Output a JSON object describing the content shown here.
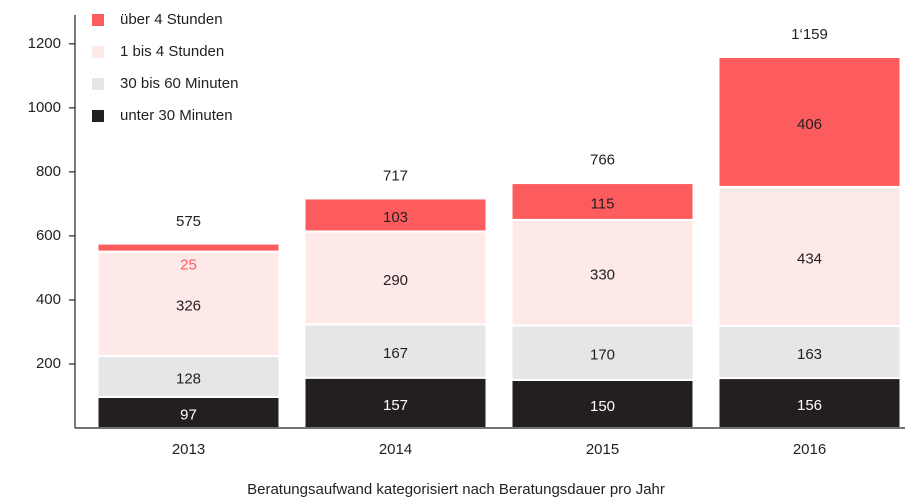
{
  "chart_data": {
    "type": "stacked_bar",
    "caption": "Beratungsaufwand kategorisiert nach Beratungsdauer pro Jahr",
    "categories": [
      "2013",
      "2014",
      "2015",
      "2016"
    ],
    "series": [
      {
        "name": "unter 30 Minuten",
        "color": "#231f20",
        "values": [
          97,
          157,
          150,
          156
        ]
      },
      {
        "name": "30 bis 60 Minuten",
        "color": "#e5e6e8",
        "values": [
          128,
          167,
          170,
          163
        ]
      },
      {
        "name": "1 bis 4 Stunden",
        "color": "#fde9e8",
        "values": [
          326,
          290,
          330,
          434
        ]
      },
      {
        "name": "über 4 Stunden",
        "color": "#fd5c5e",
        "values": [
          25,
          103,
          115,
          406
        ]
      }
    ],
    "totals": [
      575,
      717,
      766,
      1159
    ],
    "total_labels": [
      "575",
      "717",
      "766",
      "1‘159"
    ],
    "ylim": [
      0,
      1290
    ],
    "yticks": [
      200,
      400,
      600,
      800,
      1000,
      1200
    ],
    "legend": "top-left"
  }
}
